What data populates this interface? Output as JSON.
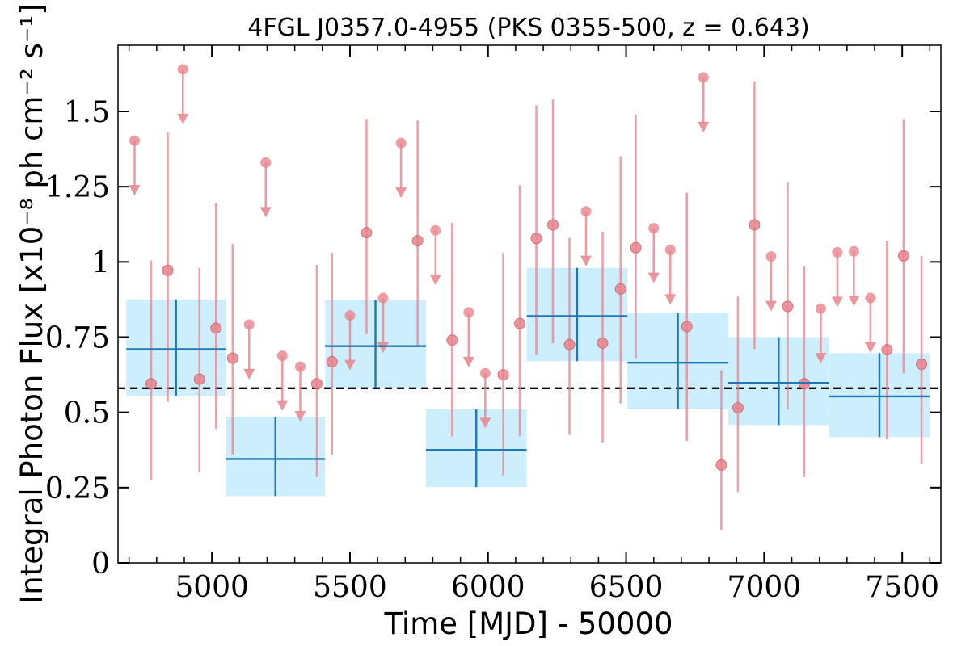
{
  "chart_data": {
    "type": "scatter",
    "title": "4FGL J0357.0-4955 (PKS 0355-500, z = 0.643)",
    "xlabel": "Time [MJD] - 50000",
    "ylabel": "Integral Photon Flux [x10⁻⁸ ph cm⁻² s⁻¹]",
    "xlim": [
      4660,
      7640
    ],
    "ylim": [
      0,
      1.72
    ],
    "xticks": [
      5000,
      5500,
      6000,
      6500,
      7000,
      7500
    ],
    "xtick_labels": [
      "5000",
      "5500",
      "6000",
      "6500",
      "7000",
      "7500"
    ],
    "yticks": [
      0,
      0.25,
      0.5,
      0.75,
      1.0,
      1.25,
      1.5
    ],
    "ytick_labels": [
      "0",
      "0.25",
      "0.5",
      "0.75",
      "1",
      "1.25",
      "1.5"
    ],
    "mean_flux": 0.58,
    "grid": false,
    "colors": {
      "points": "#e8848c",
      "point_edge": "#d25a64",
      "bins": "#1f77b4",
      "bin_band": "#cdeefd",
      "mean_line": "#000000"
    },
    "series": [
      {
        "kind": "detections",
        "points": [
          {
            "x": 4780,
            "y": 0.595,
            "lo": 0.275,
            "hi": 1.005
          },
          {
            "x": 4840,
            "y": 0.972,
            "lo": 0.535,
            "hi": 1.43
          },
          {
            "x": 4955,
            "y": 0.61,
            "lo": 0.3,
            "hi": 0.98
          },
          {
            "x": 5015,
            "y": 0.78,
            "lo": 0.445,
            "hi": 1.195
          },
          {
            "x": 5075,
            "y": 0.68,
            "lo": 0.36,
            "hi": 1.06
          },
          {
            "x": 5380,
            "y": 0.595,
            "lo": 0.285,
            "hi": 0.99
          },
          {
            "x": 5435,
            "y": 0.668,
            "lo": 0.36,
            "hi": 1.03
          },
          {
            "x": 5560,
            "y": 1.097,
            "lo": 0.76,
            "hi": 1.475
          },
          {
            "x": 5745,
            "y": 1.07,
            "lo": 0.72,
            "hi": 1.47
          },
          {
            "x": 5870,
            "y": 0.74,
            "lo": 0.42,
            "hi": 1.13
          },
          {
            "x": 6055,
            "y": 0.625,
            "lo": 0.29,
            "hi": 1.03
          },
          {
            "x": 6115,
            "y": 0.795,
            "lo": 0.42,
            "hi": 1.255
          },
          {
            "x": 6175,
            "y": 1.078,
            "lo": 0.69,
            "hi": 1.52
          },
          {
            "x": 6235,
            "y": 1.123,
            "lo": 0.73,
            "hi": 1.54
          },
          {
            "x": 6295,
            "y": 0.725,
            "lo": 0.425,
            "hi": 1.08
          },
          {
            "x": 6415,
            "y": 0.73,
            "lo": 0.4,
            "hi": 1.1
          },
          {
            "x": 6480,
            "y": 0.91,
            "lo": 0.53,
            "hi": 1.35
          },
          {
            "x": 6535,
            "y": 1.047,
            "lo": 0.68,
            "hi": 1.49
          },
          {
            "x": 6720,
            "y": 0.785,
            "lo": 0.405,
            "hi": 1.23
          },
          {
            "x": 6845,
            "y": 0.325,
            "lo": 0.11,
            "hi": 0.64
          },
          {
            "x": 6905,
            "y": 0.515,
            "lo": 0.235,
            "hi": 0.885
          },
          {
            "x": 6965,
            "y": 1.123,
            "lo": 0.71,
            "hi": 1.6
          },
          {
            "x": 7085,
            "y": 0.852,
            "lo": 0.51,
            "hi": 1.265
          },
          {
            "x": 7145,
            "y": 0.595,
            "lo": 0.285,
            "hi": 0.985
          },
          {
            "x": 7445,
            "y": 0.708,
            "lo": 0.41,
            "hi": 1.07
          },
          {
            "x": 7505,
            "y": 1.02,
            "lo": 0.63,
            "hi": 1.475
          },
          {
            "x": 7570,
            "y": 0.66,
            "lo": 0.33,
            "hi": 1.02
          }
        ]
      },
      {
        "kind": "upper_limits",
        "points": [
          {
            "x": 4720,
            "y": 1.403
          },
          {
            "x": 4895,
            "y": 1.64
          },
          {
            "x": 5135,
            "y": 0.792
          },
          {
            "x": 5195,
            "y": 1.33
          },
          {
            "x": 5255,
            "y": 0.688
          },
          {
            "x": 5320,
            "y": 0.652
          },
          {
            "x": 5500,
            "y": 0.822
          },
          {
            "x": 5620,
            "y": 0.88
          },
          {
            "x": 5685,
            "y": 1.395
          },
          {
            "x": 5810,
            "y": 1.105
          },
          {
            "x": 5930,
            "y": 0.832
          },
          {
            "x": 5990,
            "y": 0.63
          },
          {
            "x": 6355,
            "y": 1.168
          },
          {
            "x": 6600,
            "y": 1.112
          },
          {
            "x": 6660,
            "y": 1.04
          },
          {
            "x": 6780,
            "y": 1.613
          },
          {
            "x": 7025,
            "y": 1.018
          },
          {
            "x": 7205,
            "y": 0.845
          },
          {
            "x": 7265,
            "y": 1.032
          },
          {
            "x": 7325,
            "y": 1.035
          },
          {
            "x": 7385,
            "y": 0.88
          }
        ]
      },
      {
        "kind": "binned",
        "bins": [
          {
            "x0": 4690,
            "x1": 5050,
            "y": 0.71,
            "lo": 0.555,
            "hi": 0.875
          },
          {
            "x0": 5050,
            "x1": 5410,
            "y": 0.345,
            "lo": 0.222,
            "hi": 0.485
          },
          {
            "x0": 5410,
            "x1": 5775,
            "y": 0.72,
            "lo": 0.58,
            "hi": 0.873
          },
          {
            "x0": 5775,
            "x1": 6140,
            "y": 0.375,
            "lo": 0.252,
            "hi": 0.51
          },
          {
            "x0": 6140,
            "x1": 6505,
            "y": 0.82,
            "lo": 0.67,
            "hi": 0.98
          },
          {
            "x0": 6505,
            "x1": 6870,
            "y": 0.665,
            "lo": 0.51,
            "hi": 0.83
          },
          {
            "x0": 6870,
            "x1": 7235,
            "y": 0.598,
            "lo": 0.458,
            "hi": 0.75
          },
          {
            "x0": 7235,
            "x1": 7600,
            "y": 0.553,
            "lo": 0.418,
            "hi": 0.697
          }
        ]
      }
    ]
  }
}
